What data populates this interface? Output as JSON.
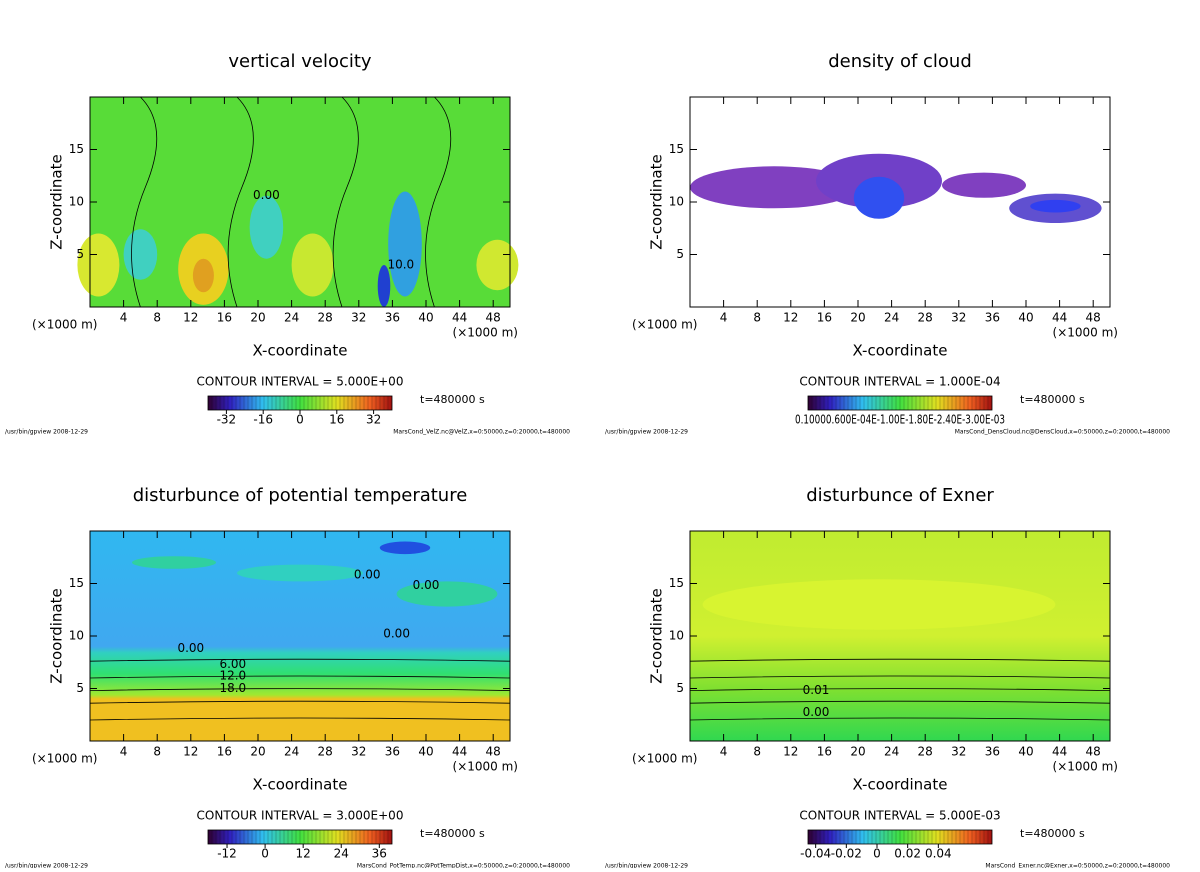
{
  "chart_data": [
    {
      "type": "contour",
      "title": "vertical velocity",
      "xlabel": "X-coordinate",
      "ylabel": "Z-coordinate",
      "unit_label": "(×1000 m)",
      "xlim": [
        0,
        50
      ],
      "ylim": [
        0,
        20
      ],
      "xticks": [
        4,
        8,
        12,
        16,
        20,
        24,
        28,
        32,
        36,
        40,
        44,
        48
      ],
      "yticks": [
        5,
        10,
        15
      ],
      "contour_interval": "CONTOUR INTERVAL = 5.000E+00",
      "time_label": "t=480000 s",
      "colorbar": {
        "lim": [
          -40,
          40
        ],
        "ticks": [
          -32,
          -16,
          0,
          16,
          32
        ]
      },
      "annotations": [
        {
          "text": "0.00",
          "x": 21,
          "y": 10.6
        },
        {
          "text": "10.0",
          "x": 37,
          "y": 4
        }
      ],
      "footer_left": "/usr/bin/gpview  2008-12-29",
      "footer_right": "MarsCond_VelZ.nc@VelZ,x=0:50000,z=0:20000,t=480000"
    },
    {
      "type": "contour",
      "title": "density of cloud",
      "xlabel": "X-coordinate",
      "ylabel": "Z-coordinate",
      "unit_label": "(×1000 m)",
      "xlim": [
        0,
        50
      ],
      "ylim": [
        0,
        20
      ],
      "xticks": [
        4,
        8,
        12,
        16,
        20,
        24,
        28,
        32,
        36,
        40,
        44,
        48
      ],
      "yticks": [
        5,
        10,
        15
      ],
      "contour_interval": "CONTOUR INTERVAL = 1.000E-04",
      "time_label": "t=480000 s",
      "colorbar": {
        "lim": [
          0,
          1
        ],
        "ticks": [],
        "label": "0.10000.600E-04E-1.00E-1.80E-2.40E-3.00E-03"
      },
      "annotations": [],
      "footer_left": "/usr/bin/gpview  2008-12-29",
      "footer_right": "MarsCond_DensCloud.nc@DensCloud,x=0:50000,z=0:20000,t=480000"
    },
    {
      "type": "contour",
      "title": "disturbunce of potential temperature",
      "xlabel": "X-coordinate",
      "ylabel": "Z-coordinate",
      "unit_label": "(×1000 m)",
      "xlim": [
        0,
        50
      ],
      "ylim": [
        0,
        20
      ],
      "xticks": [
        4,
        8,
        12,
        16,
        20,
        24,
        28,
        32,
        36,
        40,
        44,
        48
      ],
      "yticks": [
        5,
        10,
        15
      ],
      "contour_interval": "CONTOUR INTERVAL = 3.000E+00",
      "time_label": "t=480000 s",
      "colorbar": {
        "lim": [
          -18,
          40
        ],
        "ticks": [
          -12,
          0,
          12,
          24,
          36
        ]
      },
      "annotations": [
        {
          "text": "0.00",
          "x": 33,
          "y": 15.8
        },
        {
          "text": "0.00",
          "x": 40,
          "y": 14.8
        },
        {
          "text": "0.00",
          "x": 12,
          "y": 8.8
        },
        {
          "text": "0.00",
          "x": 36.5,
          "y": 10.2
        },
        {
          "text": "6.00",
          "x": 17,
          "y": 7.3
        },
        {
          "text": "12.0",
          "x": 17,
          "y": 6.2
        },
        {
          "text": "18.0",
          "x": 17,
          "y": 5
        }
      ],
      "footer_left": "/usr/bin/gpview  2008-12-29",
      "footer_right": "MarsCond_PotTemp.nc@PotTempDist,x=0:50000,z=0:20000,t=480000"
    },
    {
      "type": "contour",
      "title": "disturbunce of Exner",
      "xlabel": "X-coordinate",
      "ylabel": "Z-coordinate",
      "unit_label": "(×1000 m)",
      "xlim": [
        0,
        50
      ],
      "ylim": [
        0,
        20
      ],
      "xticks": [
        4,
        8,
        12,
        16,
        20,
        24,
        28,
        32,
        36,
        40,
        44,
        48
      ],
      "yticks": [
        5,
        10,
        15
      ],
      "contour_interval": "CONTOUR INTERVAL = 5.000E-03",
      "time_label": "t=480000 s",
      "colorbar": {
        "lim": [
          -0.045,
          0.075
        ],
        "ticks": [
          -0.04,
          -0.02,
          0,
          0.02,
          0.04
        ]
      },
      "annotations": [
        {
          "text": "0.01",
          "x": 15,
          "y": 4.8
        },
        {
          "text": "0.00",
          "x": 15,
          "y": 2.7
        }
      ],
      "footer_left": "/usr/bin/gpview  2008-12-29",
      "footer_right": "MarsCond_Exner.nc@Exner,x=0:50000,z=0:20000,t=480000"
    }
  ]
}
